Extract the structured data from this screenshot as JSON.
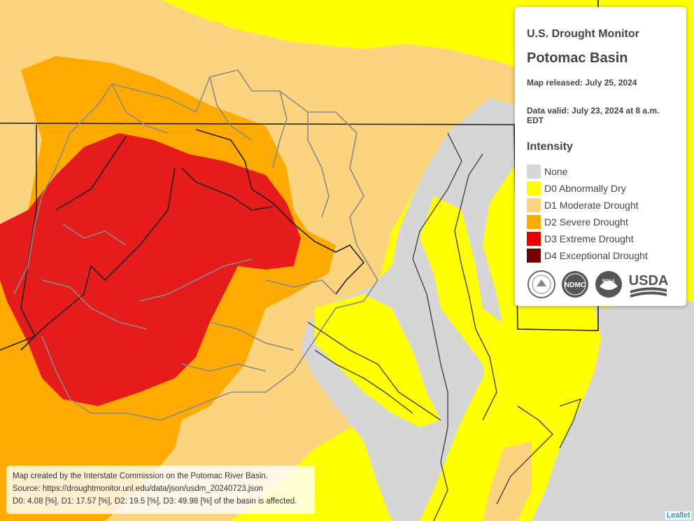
{
  "legend": {
    "heading": "U.S. Drought Monitor",
    "title": "Potomac Basin",
    "released": "Map released: July 25, 2024",
    "valid": "Data valid: July 23, 2024 at 8 a.m. EDT",
    "intensity_label": "Intensity",
    "items": [
      {
        "label": "None",
        "color": "#d6d6d6"
      },
      {
        "label": "D0 Abnormally Dry",
        "color": "#ffff00"
      },
      {
        "label": "D1 Moderate Drought",
        "color": "#fcd37f"
      },
      {
        "label": "D2 Severe Drought",
        "color": "#ffaa00"
      },
      {
        "label": "D3 Extreme Drought",
        "color": "#e60000"
      },
      {
        "label": "D4 Exceptional Drought",
        "color": "#730000"
      }
    ],
    "logos": [
      "dept-commerce-seal-icon",
      "ndmc-logo-icon",
      "noaa-logo-icon",
      "usda-logo-icon"
    ],
    "logo_text": {
      "ndmc": "NDMC",
      "noaa": "NOAA",
      "usda": "USDA"
    }
  },
  "attribution": {
    "line1": "Map created by the Interstate Commission on the Potomac River Basin.",
    "line2": "Source: https://droughtmonitor.unl.edu/data/json/usdm_20240723.json",
    "line3": "D0: 4.08 [%], D1: 17.57 [%], D2: 19.5 [%], D3: 49.98 [%] of the basin is affected."
  },
  "leaflet_link": "Leaflet"
}
